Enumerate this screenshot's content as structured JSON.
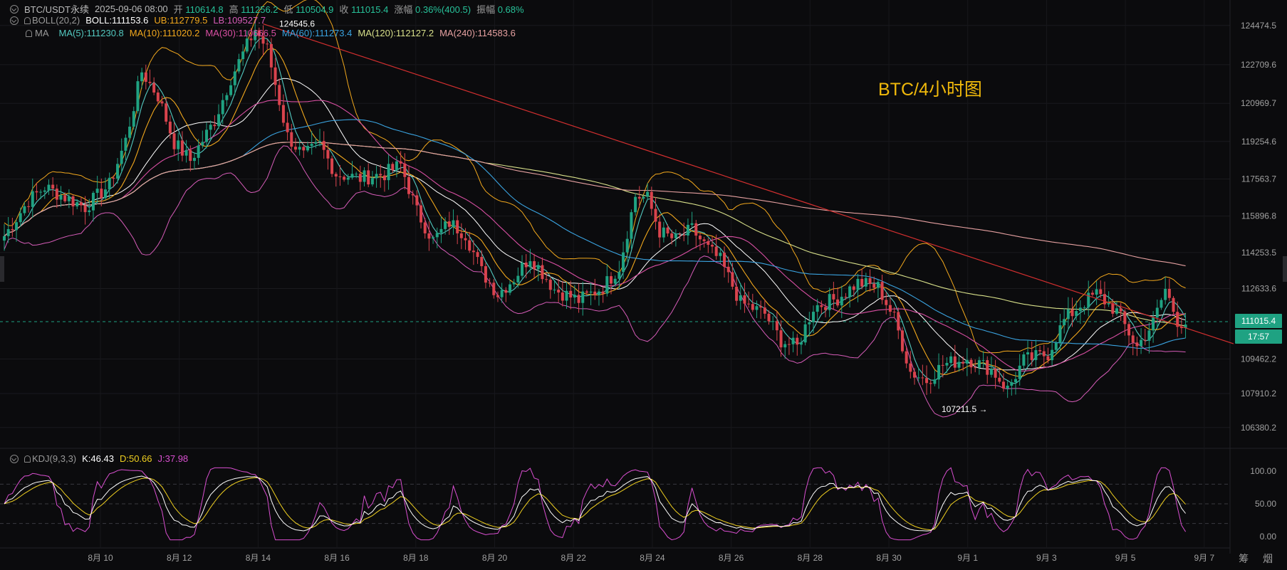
{
  "header": {
    "symbol": "BTC/USDT永续",
    "datetime": "2025-09-06 08:00",
    "open_label": "开",
    "open": "110614.8",
    "high_label": "高",
    "high": "111256.2",
    "low_label": "低",
    "low": "110504.9",
    "close_label": "收",
    "close": "111015.4",
    "change_label": "涨幅",
    "change": "0.36%(400.5)",
    "amp_label": "振幅",
    "amp": "0.68%"
  },
  "boll": {
    "name": "BOLL(20,2)",
    "mid": "BOLL:111153.6",
    "ub": "UB:112779.5",
    "lb": "LB:109527.7"
  },
  "ma": {
    "name": "MA",
    "ma5": "MA(5):111230.8",
    "ma10": "MA(10):111020.2",
    "ma30": "MA(30):110666.5",
    "ma60": "MA(60):111273.4",
    "ma120": "MA(120):112127.2",
    "ma240": "MA(240):114583.6"
  },
  "watermark": "BTC/4小时图",
  "annotations": {
    "high_point": "124545.6",
    "low_point": "107211.5 →"
  },
  "price_tag": {
    "price": "111015.4",
    "countdown": "17:57"
  },
  "kdj": {
    "name": "KDJ(9,3,3)",
    "k": "K:46.43",
    "d": "D:50.66",
    "j": "J:37.98"
  },
  "corner_label": "筹 烟",
  "colors": {
    "up": "#1fa282",
    "down": "#d9434d",
    "boll_mid": "#ffffff",
    "boll_band": "#d65cb8",
    "ma5": "#53c9c0",
    "ma10": "#f2a81d",
    "ma30": "#d94fa3",
    "ma60": "#3aa3e0",
    "ma120": "#d8e08a",
    "ma240": "#e5a0a0",
    "trend": "#d32f2f",
    "k_line": "#ffffff",
    "d_line": "#f0d020",
    "j_line": "#d94fd0"
  },
  "chart_data": {
    "type": "candlestick",
    "timeframe": "4h",
    "price_axis_ticks": [
      "124474.5",
      "122709.6",
      "120969.7",
      "119254.6",
      "117563.7",
      "115896.8",
      "114253.5",
      "112633.6",
      "109462.2",
      "107910.2",
      "106380.2"
    ],
    "x_ticks": [
      "8月 10",
      "8月 12",
      "8月 14",
      "8月 16",
      "8月 18",
      "8月 20",
      "8月 22",
      "8月 24",
      "8月 26",
      "8月 28",
      "8月 30",
      "9月 1",
      "9月 3",
      "9月 5",
      "9月 7"
    ],
    "kdj_ticks": [
      "100.00",
      "50.00",
      "0.00"
    ],
    "price_range": [
      105700,
      125300
    ],
    "anchors": [
      [
        0,
        115000
      ],
      [
        6,
        116600
      ],
      [
        10,
        117200
      ],
      [
        20,
        116300
      ],
      [
        26,
        117300
      ],
      [
        30,
        119300
      ],
      [
        34,
        122400
      ],
      [
        38,
        121300
      ],
      [
        42,
        119200
      ],
      [
        46,
        118400
      ],
      [
        52,
        120200
      ],
      [
        56,
        122100
      ],
      [
        62,
        124300
      ],
      [
        65,
        123400
      ],
      [
        70,
        119500
      ],
      [
        74,
        118600
      ],
      [
        78,
        119100
      ],
      [
        82,
        117800
      ],
      [
        88,
        117600
      ],
      [
        94,
        117800
      ],
      [
        98,
        118200
      ],
      [
        102,
        116100
      ],
      [
        106,
        114800
      ],
      [
        110,
        115600
      ],
      [
        114,
        115100
      ],
      [
        118,
        113400
      ],
      [
        122,
        112400
      ],
      [
        126,
        113100
      ],
      [
        130,
        114100
      ],
      [
        136,
        112600
      ],
      [
        142,
        112100
      ],
      [
        148,
        112700
      ],
      [
        152,
        113600
      ],
      [
        156,
        116800
      ],
      [
        159,
        116700
      ],
      [
        162,
        115200
      ],
      [
        166,
        114800
      ],
      [
        170,
        115300
      ],
      [
        174,
        114400
      ],
      [
        177,
        113900
      ],
      [
        182,
        112000
      ],
      [
        188,
        111500
      ],
      [
        192,
        110300
      ],
      [
        196,
        110000
      ],
      [
        200,
        111800
      ],
      [
        206,
        112200
      ],
      [
        211,
        112900
      ],
      [
        216,
        112700
      ],
      [
        220,
        111300
      ],
      [
        224,
        108900
      ],
      [
        228,
        108500
      ],
      [
        232,
        109200
      ],
      [
        238,
        109500
      ],
      [
        244,
        109000
      ],
      [
        248,
        108100
      ],
      [
        252,
        109400
      ],
      [
        258,
        109700
      ],
      [
        262,
        111200
      ],
      [
        266,
        111900
      ],
      [
        270,
        112400
      ],
      [
        275,
        111600
      ],
      [
        280,
        110000
      ],
      [
        284,
        111100
      ],
      [
        287,
        112600
      ],
      [
        290,
        111200
      ],
      [
        292,
        111016
      ]
    ],
    "series": [
      {
        "name": "BOLL(20,2)",
        "values": {
          "mid": 111153.6,
          "ub": 112779.5,
          "lb": 109527.7
        }
      },
      {
        "name": "MA(5)",
        "last": 111230.8
      },
      {
        "name": "MA(10)",
        "last": 111020.2
      },
      {
        "name": "MA(30)",
        "last": 110666.5
      },
      {
        "name": "MA(60)",
        "last": 111273.4
      },
      {
        "name": "MA(120)",
        "last": 112127.2
      },
      {
        "name": "MA(240)",
        "last": 114583.6
      },
      {
        "name": "KDJ(9,3,3)",
        "last": {
          "K": 46.43,
          "D": 50.66,
          "J": 37.98
        }
      }
    ],
    "high_point": 124545.6,
    "low_point": 107211.5,
    "last_price": 111015.4
  }
}
